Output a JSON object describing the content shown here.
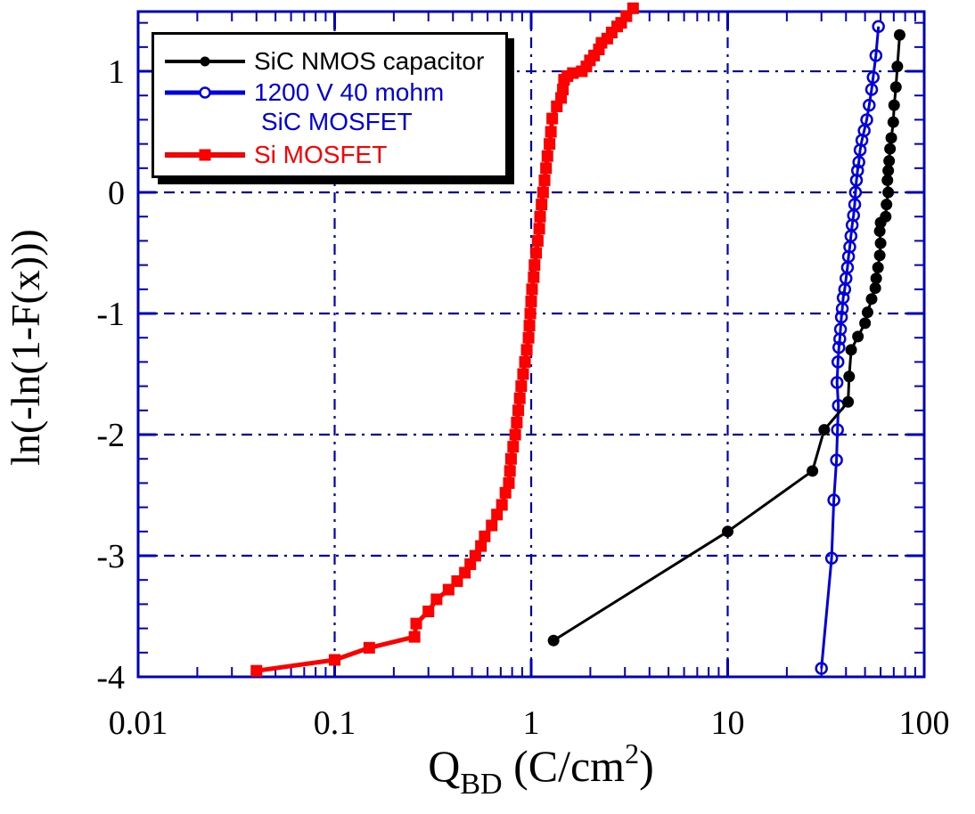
{
  "chart_data": {
    "type": "line",
    "title": "",
    "xlabel_parts": {
      "symbol": "Q",
      "subscript": "BD",
      "units_open": " (C/cm",
      "exponent": "2",
      "units_close": ")"
    },
    "ylabel": "ln(-ln(1-F(x)))",
    "x_scale": "log",
    "xlim": [
      0.01,
      100
    ],
    "ylim": [
      -4,
      1.493
    ],
    "x_ticks": [
      0.01,
      0.1,
      1,
      10,
      100
    ],
    "x_tick_labels": [
      "0.01",
      "0.1",
      "1",
      "10",
      "100"
    ],
    "y_ticks": [
      1,
      0,
      -1,
      -2,
      -3,
      -4
    ],
    "y_tick_labels": [
      "1",
      "0",
      "-1",
      "-2",
      "-3",
      "-4"
    ],
    "y_minor_step": 0.2,
    "grid": {
      "x_values": [
        0.1,
        1,
        10
      ],
      "y_values": [
        1,
        0,
        -1,
        -2,
        -3
      ]
    },
    "legend_position": "top-left",
    "colors": {
      "axis": "#0000c0",
      "grid": "#0000c0",
      "text": "#000000",
      "background": "#ffffff",
      "legend_border": "#000000"
    },
    "series": [
      {
        "name": "SiC NMOS capacitor",
        "color": "#000000",
        "marker": "dot",
        "line_width": 3,
        "marker_size": 6.5,
        "points": [
          [
            1.3,
            -3.7
          ],
          [
            10,
            -2.8
          ],
          [
            27,
            -2.3
          ],
          [
            31,
            -1.96
          ],
          [
            41,
            -1.73
          ],
          [
            41.5,
            -1.52
          ],
          [
            42.5,
            -1.3
          ],
          [
            46,
            -1.19
          ],
          [
            50,
            -1.08
          ],
          [
            51.5,
            -0.99
          ],
          [
            54,
            -0.88
          ],
          [
            56.4,
            -0.79
          ],
          [
            57,
            -0.71
          ],
          [
            58.2,
            -0.62
          ],
          [
            59.4,
            -0.52
          ],
          [
            60,
            -0.42
          ],
          [
            59.4,
            -0.32
          ],
          [
            60,
            -0.25
          ],
          [
            63.7,
            -0.2
          ],
          [
            64.3,
            -0.1
          ],
          [
            65.6,
            0.0
          ],
          [
            65.0,
            0.1
          ],
          [
            65.6,
            0.18
          ],
          [
            66.3,
            0.26
          ],
          [
            67.0,
            0.36
          ],
          [
            68.0,
            0.45
          ],
          [
            69.6,
            0.58
          ],
          [
            70.3,
            0.72
          ],
          [
            71.8,
            0.87
          ],
          [
            73.0,
            1.04
          ],
          [
            75.0,
            1.3
          ]
        ]
      },
      {
        "name": "1200 V 40 mohm SiC MOSFET",
        "legend_lines": [
          "1200 V 40 mohm",
          "SiC MOSFET"
        ],
        "color": "#0000e0",
        "marker": "open-circle",
        "line_width": 3,
        "marker_size": 6.5,
        "points": [
          [
            30,
            -3.93
          ],
          [
            33.8,
            -3.02
          ],
          [
            34.7,
            -2.54
          ],
          [
            35.8,
            -2.21
          ],
          [
            36.2,
            -1.96
          ],
          [
            36.6,
            -1.76
          ],
          [
            36.0,
            -1.57
          ],
          [
            36.4,
            -1.4
          ],
          [
            36.8,
            -1.28
          ],
          [
            37.2,
            -1.21
          ],
          [
            37.5,
            -1.13
          ],
          [
            37.9,
            -1.03
          ],
          [
            38.3,
            -0.96
          ],
          [
            38.7,
            -0.87
          ],
          [
            39.4,
            -0.8
          ],
          [
            40.0,
            -0.71
          ],
          [
            40.7,
            -0.62
          ],
          [
            41.2,
            -0.53
          ],
          [
            41.8,
            -0.45
          ],
          [
            42.4,
            -0.36
          ],
          [
            43.0,
            -0.27
          ],
          [
            43.7,
            -0.19
          ],
          [
            44.3,
            -0.1
          ],
          [
            44.7,
            0.0
          ],
          [
            45.2,
            0.1
          ],
          [
            45.8,
            0.18
          ],
          [
            46.5,
            0.25
          ],
          [
            47.2,
            0.35
          ],
          [
            48.2,
            0.43
          ],
          [
            49.5,
            0.51
          ],
          [
            51.0,
            0.6
          ],
          [
            52.5,
            0.72
          ],
          [
            54.0,
            0.85
          ],
          [
            55.0,
            0.95
          ],
          [
            56.8,
            1.13
          ],
          [
            58.5,
            1.37
          ]
        ]
      },
      {
        "name": "Si MOSFET",
        "color": "#ff0000",
        "marker": "square",
        "line_width": 5,
        "marker_size": 6.5,
        "points": [
          [
            0.04,
            -3.95
          ],
          [
            0.1,
            -3.86
          ],
          [
            0.15,
            -3.76
          ],
          [
            0.255,
            -3.67
          ],
          [
            0.26,
            -3.56
          ],
          [
            0.3,
            -3.46
          ],
          [
            0.33,
            -3.36
          ],
          [
            0.38,
            -3.28
          ],
          [
            0.42,
            -3.21
          ],
          [
            0.46,
            -3.14
          ],
          [
            0.49,
            -3.07
          ],
          [
            0.52,
            -3.0
          ],
          [
            0.555,
            -2.92
          ],
          [
            0.58,
            -2.84
          ],
          [
            0.63,
            -2.75
          ],
          [
            0.67,
            -2.66
          ],
          [
            0.71,
            -2.58
          ],
          [
            0.74,
            -2.48
          ],
          [
            0.77,
            -2.4
          ],
          [
            0.78,
            -2.3
          ],
          [
            0.79,
            -2.2
          ],
          [
            0.81,
            -2.1
          ],
          [
            0.83,
            -2.0
          ],
          [
            0.845,
            -1.9
          ],
          [
            0.86,
            -1.8
          ],
          [
            0.875,
            -1.7
          ],
          [
            0.89,
            -1.6
          ],
          [
            0.91,
            -1.5
          ],
          [
            0.93,
            -1.4
          ],
          [
            0.95,
            -1.3
          ],
          [
            0.97,
            -1.2
          ],
          [
            0.98,
            -1.1
          ],
          [
            0.99,
            -1.0
          ],
          [
            1.0,
            -0.9
          ],
          [
            1.01,
            -0.8
          ],
          [
            1.03,
            -0.7
          ],
          [
            1.04,
            -0.6
          ],
          [
            1.06,
            -0.5
          ],
          [
            1.08,
            -0.4
          ],
          [
            1.1,
            -0.3
          ],
          [
            1.11,
            -0.2
          ],
          [
            1.13,
            -0.1
          ],
          [
            1.15,
            0.0
          ],
          [
            1.17,
            0.1
          ],
          [
            1.19,
            0.2
          ],
          [
            1.21,
            0.3
          ],
          [
            1.24,
            0.4
          ],
          [
            1.26,
            0.5
          ],
          [
            1.28,
            0.61
          ],
          [
            1.35,
            0.71
          ],
          [
            1.42,
            0.78
          ],
          [
            1.45,
            0.85
          ],
          [
            1.47,
            0.93
          ],
          [
            1.53,
            0.96
          ],
          [
            1.63,
            0.985
          ],
          [
            1.81,
            1.0
          ],
          [
            1.91,
            1.04
          ],
          [
            1.99,
            1.09
          ],
          [
            2.09,
            1.13
          ],
          [
            2.21,
            1.18
          ],
          [
            2.28,
            1.235
          ],
          [
            2.44,
            1.27
          ],
          [
            2.57,
            1.32
          ],
          [
            2.74,
            1.37
          ],
          [
            2.87,
            1.4
          ],
          [
            3.05,
            1.455
          ],
          [
            3.3,
            1.52
          ]
        ]
      }
    ]
  }
}
